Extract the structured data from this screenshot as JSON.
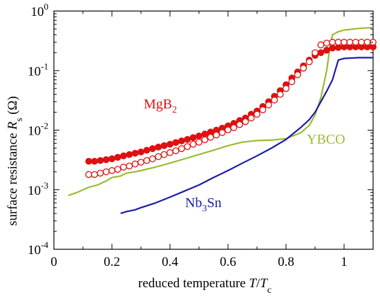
{
  "chart_data": {
    "type": "scatter",
    "xlabel": {
      "main": "reduced temperature ",
      "var1": "T",
      "slash": "/",
      "var2": "T",
      "sub": "c"
    },
    "ylabel": {
      "main": "surface resistance ",
      "var": "R",
      "sub": "s",
      "unit": " (Ω)"
    },
    "xlim": [
      0,
      1.1
    ],
    "ylim": [
      0.0001,
      1
    ],
    "yscale": "log",
    "x_ticks": [
      {
        "value": 0,
        "label": "0"
      },
      {
        "value": 0.2,
        "label": "0.2"
      },
      {
        "value": 0.4,
        "label": "0.4"
      },
      {
        "value": 0.6,
        "label": "0.6"
      },
      {
        "value": 0.8,
        "label": "0.8"
      },
      {
        "value": 1,
        "label": "1"
      }
    ],
    "y_ticks": [
      {
        "value": 1,
        "base": "10",
        "exp": "0"
      },
      {
        "value": 0.1,
        "base": "10",
        "exp": "-1"
      },
      {
        "value": 0.01,
        "base": "10",
        "exp": "-2"
      },
      {
        "value": 0.001,
        "base": "10",
        "exp": "-3"
      },
      {
        "value": 0.0001,
        "base": "10",
        "exp": "-4"
      }
    ],
    "grid": false,
    "legend": "none",
    "series": [
      {
        "name": "YBCO",
        "kind": "line",
        "color": "#99bb33",
        "x": [
          0.05,
          0.08,
          0.1,
          0.12,
          0.15,
          0.18,
          0.2,
          0.23,
          0.25,
          0.28,
          0.3,
          0.35,
          0.4,
          0.45,
          0.5,
          0.55,
          0.6,
          0.65,
          0.7,
          0.75,
          0.8,
          0.85,
          0.88,
          0.9,
          0.92,
          0.94,
          0.95,
          0.96,
          0.98,
          1.0,
          1.05,
          1.1
        ],
        "y": [
          0.0008,
          0.0009,
          0.001,
          0.0011,
          0.0012,
          0.0014,
          0.0016,
          0.0017,
          0.0019,
          0.002,
          0.0021,
          0.0024,
          0.0028,
          0.0033,
          0.0039,
          0.0046,
          0.0055,
          0.0063,
          0.0067,
          0.0068,
          0.0072,
          0.009,
          0.012,
          0.018,
          0.035,
          0.1,
          0.22,
          0.4,
          0.45,
          0.48,
          0.51,
          0.53
        ]
      },
      {
        "name": "Nb₃Sn",
        "label_parts": {
          "a": "Nb",
          "sub1": "3",
          "b": "Sn"
        },
        "kind": "line",
        "color": "#1a1aaa",
        "x": [
          0.23,
          0.25,
          0.28,
          0.3,
          0.35,
          0.4,
          0.45,
          0.5,
          0.55,
          0.6,
          0.65,
          0.7,
          0.75,
          0.8,
          0.85,
          0.88,
          0.9,
          0.92,
          0.94,
          0.96,
          0.98,
          1.0,
          1.05,
          1.1
        ],
        "y": [
          0.0004,
          0.00043,
          0.00046,
          0.0005,
          0.0006,
          0.00075,
          0.00095,
          0.0012,
          0.0016,
          0.0021,
          0.0028,
          0.0037,
          0.005,
          0.007,
          0.011,
          0.015,
          0.02,
          0.03,
          0.045,
          0.07,
          0.15,
          0.16,
          0.165,
          0.165
        ]
      },
      {
        "name": "MgB₂",
        "label_parts": {
          "a": "MgB",
          "sub1": "2"
        },
        "kind": "marker-filled",
        "color": "#dd1111",
        "x": [
          0.12,
          0.14,
          0.16,
          0.18,
          0.2,
          0.22,
          0.24,
          0.26,
          0.28,
          0.3,
          0.32,
          0.34,
          0.36,
          0.38,
          0.4,
          0.42,
          0.44,
          0.46,
          0.48,
          0.5,
          0.52,
          0.54,
          0.56,
          0.58,
          0.6,
          0.62,
          0.64,
          0.66,
          0.68,
          0.7,
          0.72,
          0.74,
          0.76,
          0.78,
          0.8,
          0.82,
          0.84,
          0.86,
          0.88,
          0.9,
          0.92,
          0.94,
          0.96,
          0.98,
          1.0,
          1.02,
          1.04,
          1.06,
          1.08,
          1.1
        ],
        "y": [
          0.003,
          0.003,
          0.0031,
          0.0032,
          0.0033,
          0.0035,
          0.0037,
          0.0039,
          0.0041,
          0.0043,
          0.0046,
          0.0049,
          0.0052,
          0.0055,
          0.0058,
          0.0062,
          0.0066,
          0.007,
          0.0075,
          0.008,
          0.0086,
          0.0093,
          0.01,
          0.0108,
          0.0118,
          0.013,
          0.0145,
          0.016,
          0.0185,
          0.021,
          0.025,
          0.03,
          0.037,
          0.046,
          0.058,
          0.075,
          0.095,
          0.12,
          0.15,
          0.18,
          0.2,
          0.22,
          0.24,
          0.245,
          0.25,
          0.25,
          0.25,
          0.25,
          0.25,
          0.25
        ]
      },
      {
        "name": "MgB₂ (open)",
        "kind": "marker-open",
        "color": "#dd1111",
        "x": [
          0.12,
          0.14,
          0.16,
          0.18,
          0.2,
          0.22,
          0.24,
          0.26,
          0.28,
          0.3,
          0.32,
          0.34,
          0.36,
          0.38,
          0.4,
          0.42,
          0.44,
          0.46,
          0.48,
          0.5,
          0.52,
          0.54,
          0.56,
          0.58,
          0.6,
          0.62,
          0.64,
          0.66,
          0.68,
          0.7,
          0.72,
          0.74,
          0.76,
          0.78,
          0.8,
          0.82,
          0.84,
          0.86,
          0.88,
          0.9,
          0.92,
          0.94,
          0.96,
          0.98,
          1.0,
          1.02,
          1.04,
          1.06,
          1.08,
          1.1
        ],
        "y": [
          0.0018,
          0.0018,
          0.0019,
          0.002,
          0.0021,
          0.0022,
          0.0024,
          0.0025,
          0.0027,
          0.0029,
          0.0031,
          0.0033,
          0.0036,
          0.0039,
          0.0042,
          0.0045,
          0.0049,
          0.0053,
          0.0058,
          0.0063,
          0.0069,
          0.0076,
          0.0083,
          0.0091,
          0.0101,
          0.011,
          0.0124,
          0.0139,
          0.016,
          0.0185,
          0.022,
          0.0265,
          0.032,
          0.04,
          0.05,
          0.065,
          0.085,
          0.11,
          0.14,
          0.2,
          0.27,
          0.29,
          0.3,
          0.3,
          0.3,
          0.3,
          0.3,
          0.3,
          0.3,
          0.3
        ]
      }
    ]
  }
}
